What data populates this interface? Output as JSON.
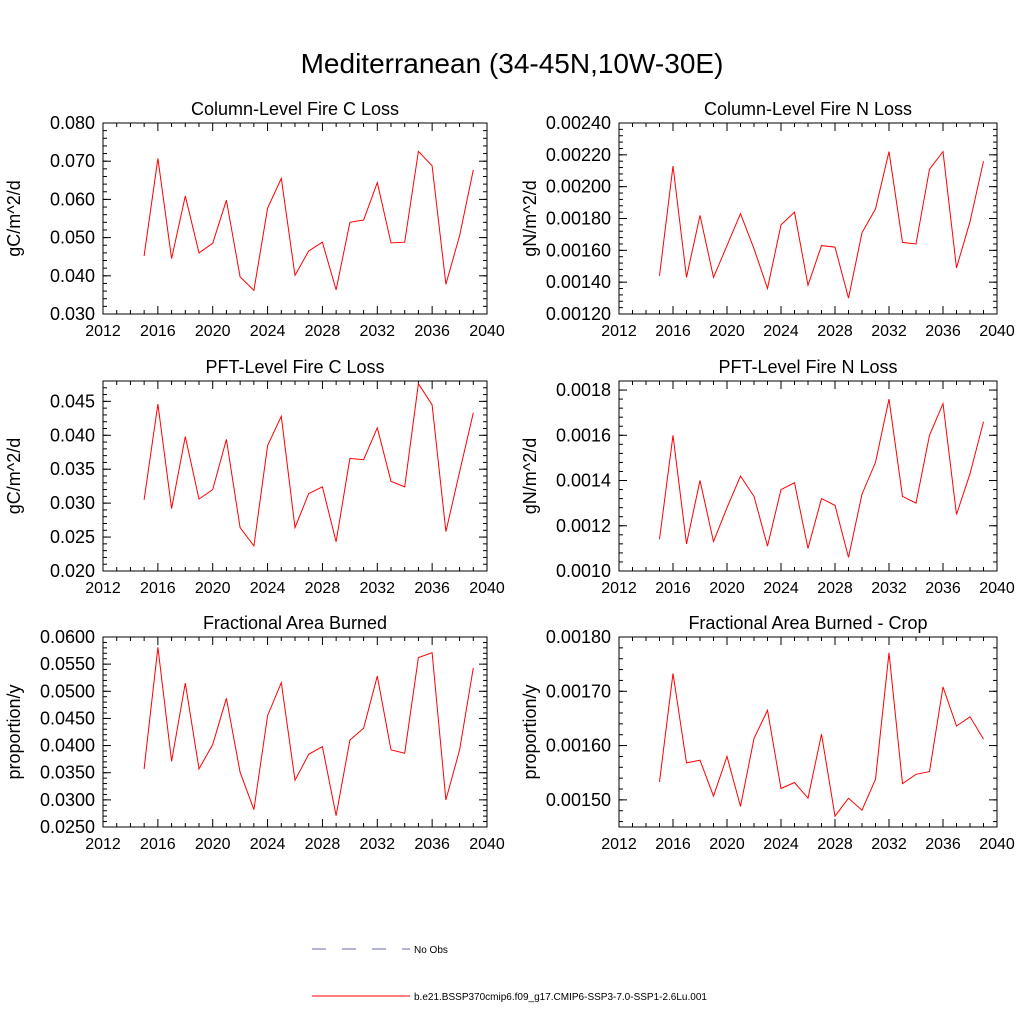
{
  "title": "Mediterranean (34-45N,10W-30E)",
  "legend": {
    "items": [
      {
        "label": "No Obs",
        "color": "#6a6aa8",
        "style": "dashed"
      },
      {
        "label": "b.e21.BSSP370cmip6.f09_g17.CMIP6-SSP3-7.0-SSP1-2.6Lu.001",
        "color": "#ff0000",
        "style": "solid"
      }
    ]
  },
  "chart_data": [
    {
      "type": "line",
      "title": "Column-Level Fire C Loss",
      "ylabel": "gC/m^2/d",
      "xlim": [
        2012,
        2040
      ],
      "ylim": [
        0.03,
        0.08
      ],
      "xticks": [
        "2012",
        "2016",
        "2020",
        "2024",
        "2028",
        "2032",
        "2036",
        "2040"
      ],
      "yticks": [
        "0.030",
        "0.040",
        "0.050",
        "0.060",
        "0.070",
        "0.080"
      ],
      "x": [
        2015,
        2016,
        2017,
        2018,
        2019,
        2020,
        2021,
        2022,
        2023,
        2024,
        2025,
        2026,
        2027,
        2028,
        2029,
        2030,
        2031,
        2032,
        2033,
        2034,
        2035,
        2036,
        2037,
        2038,
        2039
      ],
      "series": [
        {
          "color": "#ff0000",
          "values": [
            0.0452,
            0.0707,
            0.0445,
            0.0609,
            0.046,
            0.0485,
            0.0598,
            0.0397,
            0.0362,
            0.0577,
            0.0655,
            0.0401,
            0.0465,
            0.0488,
            0.0363,
            0.054,
            0.0546,
            0.0644,
            0.0486,
            0.0488,
            0.0726,
            0.0688,
            0.0378,
            0.0505,
            0.0677
          ]
        }
      ]
    },
    {
      "type": "line",
      "title": "Column-Level Fire N Loss",
      "ylabel": "gN/m^2/d",
      "xlim": [
        2012,
        2040
      ],
      "ylim": [
        0.0012,
        0.0024
      ],
      "xticks": [
        "2012",
        "2016",
        "2020",
        "2024",
        "2028",
        "2032",
        "2036",
        "2040"
      ],
      "yticks": [
        "0.00120",
        "0.00140",
        "0.00160",
        "0.00180",
        "0.00200",
        "0.00220",
        "0.00240"
      ],
      "x": [
        2015,
        2016,
        2017,
        2018,
        2019,
        2020,
        2021,
        2022,
        2023,
        2024,
        2025,
        2026,
        2027,
        2028,
        2029,
        2030,
        2031,
        2032,
        2033,
        2034,
        2035,
        2036,
        2037,
        2038,
        2039
      ],
      "series": [
        {
          "color": "#ff0000",
          "values": [
            0.00144,
            0.00213,
            0.00143,
            0.00182,
            0.00143,
            0.00163,
            0.00183,
            0.00161,
            0.00136,
            0.00176,
            0.00184,
            0.00138,
            0.00163,
            0.00162,
            0.0013,
            0.00171,
            0.00186,
            0.00222,
            0.00165,
            0.00164,
            0.00211,
            0.00222,
            0.00149,
            0.00178,
            0.00216
          ]
        }
      ]
    },
    {
      "type": "line",
      "title": "PFT-Level Fire C Loss",
      "ylabel": "gC/m^2/d",
      "xlim": [
        2012,
        2040
      ],
      "ylim": [
        0.02,
        0.048
      ],
      "xticks": [
        "2012",
        "2016",
        "2020",
        "2024",
        "2028",
        "2032",
        "2036",
        "2040"
      ],
      "yticks": [
        "0.020",
        "0.025",
        "0.030",
        "0.035",
        "0.040",
        "0.045"
      ],
      "x": [
        2015,
        2016,
        2017,
        2018,
        2019,
        2020,
        2021,
        2022,
        2023,
        2024,
        2025,
        2026,
        2027,
        2028,
        2029,
        2030,
        2031,
        2032,
        2033,
        2034,
        2035,
        2036,
        2037,
        2038,
        2039
      ],
      "series": [
        {
          "color": "#ff0000",
          "values": [
            0.0305,
            0.0446,
            0.0292,
            0.0398,
            0.0306,
            0.032,
            0.0394,
            0.0264,
            0.0237,
            0.0385,
            0.0428,
            0.0264,
            0.0314,
            0.0324,
            0.0243,
            0.0366,
            0.0364,
            0.0411,
            0.0332,
            0.0324,
            0.0476,
            0.0445,
            0.0258,
            0.0346,
            0.0433
          ]
        }
      ]
    },
    {
      "type": "line",
      "title": "PFT-Level Fire N Loss",
      "ylabel": "gN/m^2/d",
      "xlim": [
        2012,
        2040
      ],
      "ylim": [
        0.001,
        0.00184
      ],
      "xticks": [
        "2012",
        "2016",
        "2020",
        "2024",
        "2028",
        "2032",
        "2036",
        "2040"
      ],
      "yticks": [
        "0.0010",
        "0.0012",
        "0.0014",
        "0.0016",
        "0.0018"
      ],
      "x": [
        2015,
        2016,
        2017,
        2018,
        2019,
        2020,
        2021,
        2022,
        2023,
        2024,
        2025,
        2026,
        2027,
        2028,
        2029,
        2030,
        2031,
        2032,
        2033,
        2034,
        2035,
        2036,
        2037,
        2038,
        2039
      ],
      "series": [
        {
          "color": "#ff0000",
          "values": [
            0.00114,
            0.0016,
            0.00112,
            0.0014,
            0.00113,
            0.00128,
            0.00142,
            0.00133,
            0.00111,
            0.00136,
            0.00139,
            0.0011,
            0.00132,
            0.00129,
            0.00106,
            0.00134,
            0.00148,
            0.00176,
            0.00133,
            0.0013,
            0.0016,
            0.00174,
            0.00125,
            0.00143,
            0.00166
          ]
        }
      ]
    },
    {
      "type": "line",
      "title": "Fractional Area Burned",
      "ylabel": "proportion/y",
      "xlim": [
        2012,
        2040
      ],
      "ylim": [
        0.025,
        0.06
      ],
      "xticks": [
        "2012",
        "2016",
        "2020",
        "2024",
        "2028",
        "2032",
        "2036",
        "2040"
      ],
      "yticks": [
        "0.0250",
        "0.0300",
        "0.0350",
        "0.0400",
        "0.0450",
        "0.0500",
        "0.0550",
        "0.0600"
      ],
      "x": [
        2015,
        2016,
        2017,
        2018,
        2019,
        2020,
        2021,
        2022,
        2023,
        2024,
        2025,
        2026,
        2027,
        2028,
        2029,
        2030,
        2031,
        2032,
        2033,
        2034,
        2035,
        2036,
        2037,
        2038,
        2039
      ],
      "series": [
        {
          "color": "#ff0000",
          "values": [
            0.0357,
            0.0581,
            0.0371,
            0.0515,
            0.0357,
            0.0402,
            0.0487,
            0.0351,
            0.0282,
            0.0455,
            0.0516,
            0.0336,
            0.0384,
            0.0398,
            0.0271,
            0.041,
            0.0432,
            0.0528,
            0.0392,
            0.0386,
            0.0562,
            0.0571,
            0.03,
            0.0392,
            0.0543
          ]
        }
      ]
    },
    {
      "type": "line",
      "title": "Fractional Area Burned - Crop",
      "ylabel": "proportion/y",
      "xlim": [
        2012,
        2040
      ],
      "ylim": [
        0.00145,
        0.0018
      ],
      "xticks": [
        "2012",
        "2016",
        "2020",
        "2024",
        "2028",
        "2032",
        "2036",
        "2040"
      ],
      "yticks": [
        "0.00150",
        "0.00160",
        "0.00170",
        "0.00180"
      ],
      "x": [
        2015,
        2016,
        2017,
        2018,
        2019,
        2020,
        2021,
        2022,
        2023,
        2024,
        2025,
        2026,
        2027,
        2028,
        2029,
        2030,
        2031,
        2032,
        2033,
        2034,
        2035,
        2036,
        2037,
        2038,
        2039
      ],
      "series": [
        {
          "color": "#ff0000",
          "values": [
            0.001533,
            0.001733,
            0.001568,
            0.001573,
            0.001507,
            0.00158,
            0.001488,
            0.001613,
            0.001665,
            0.001521,
            0.001532,
            0.001503,
            0.001621,
            0.00147,
            0.001503,
            0.001481,
            0.001538,
            0.001771,
            0.00153,
            0.001547,
            0.001552,
            0.001708,
            0.001636,
            0.001653,
            0.001612
          ]
        }
      ]
    }
  ]
}
